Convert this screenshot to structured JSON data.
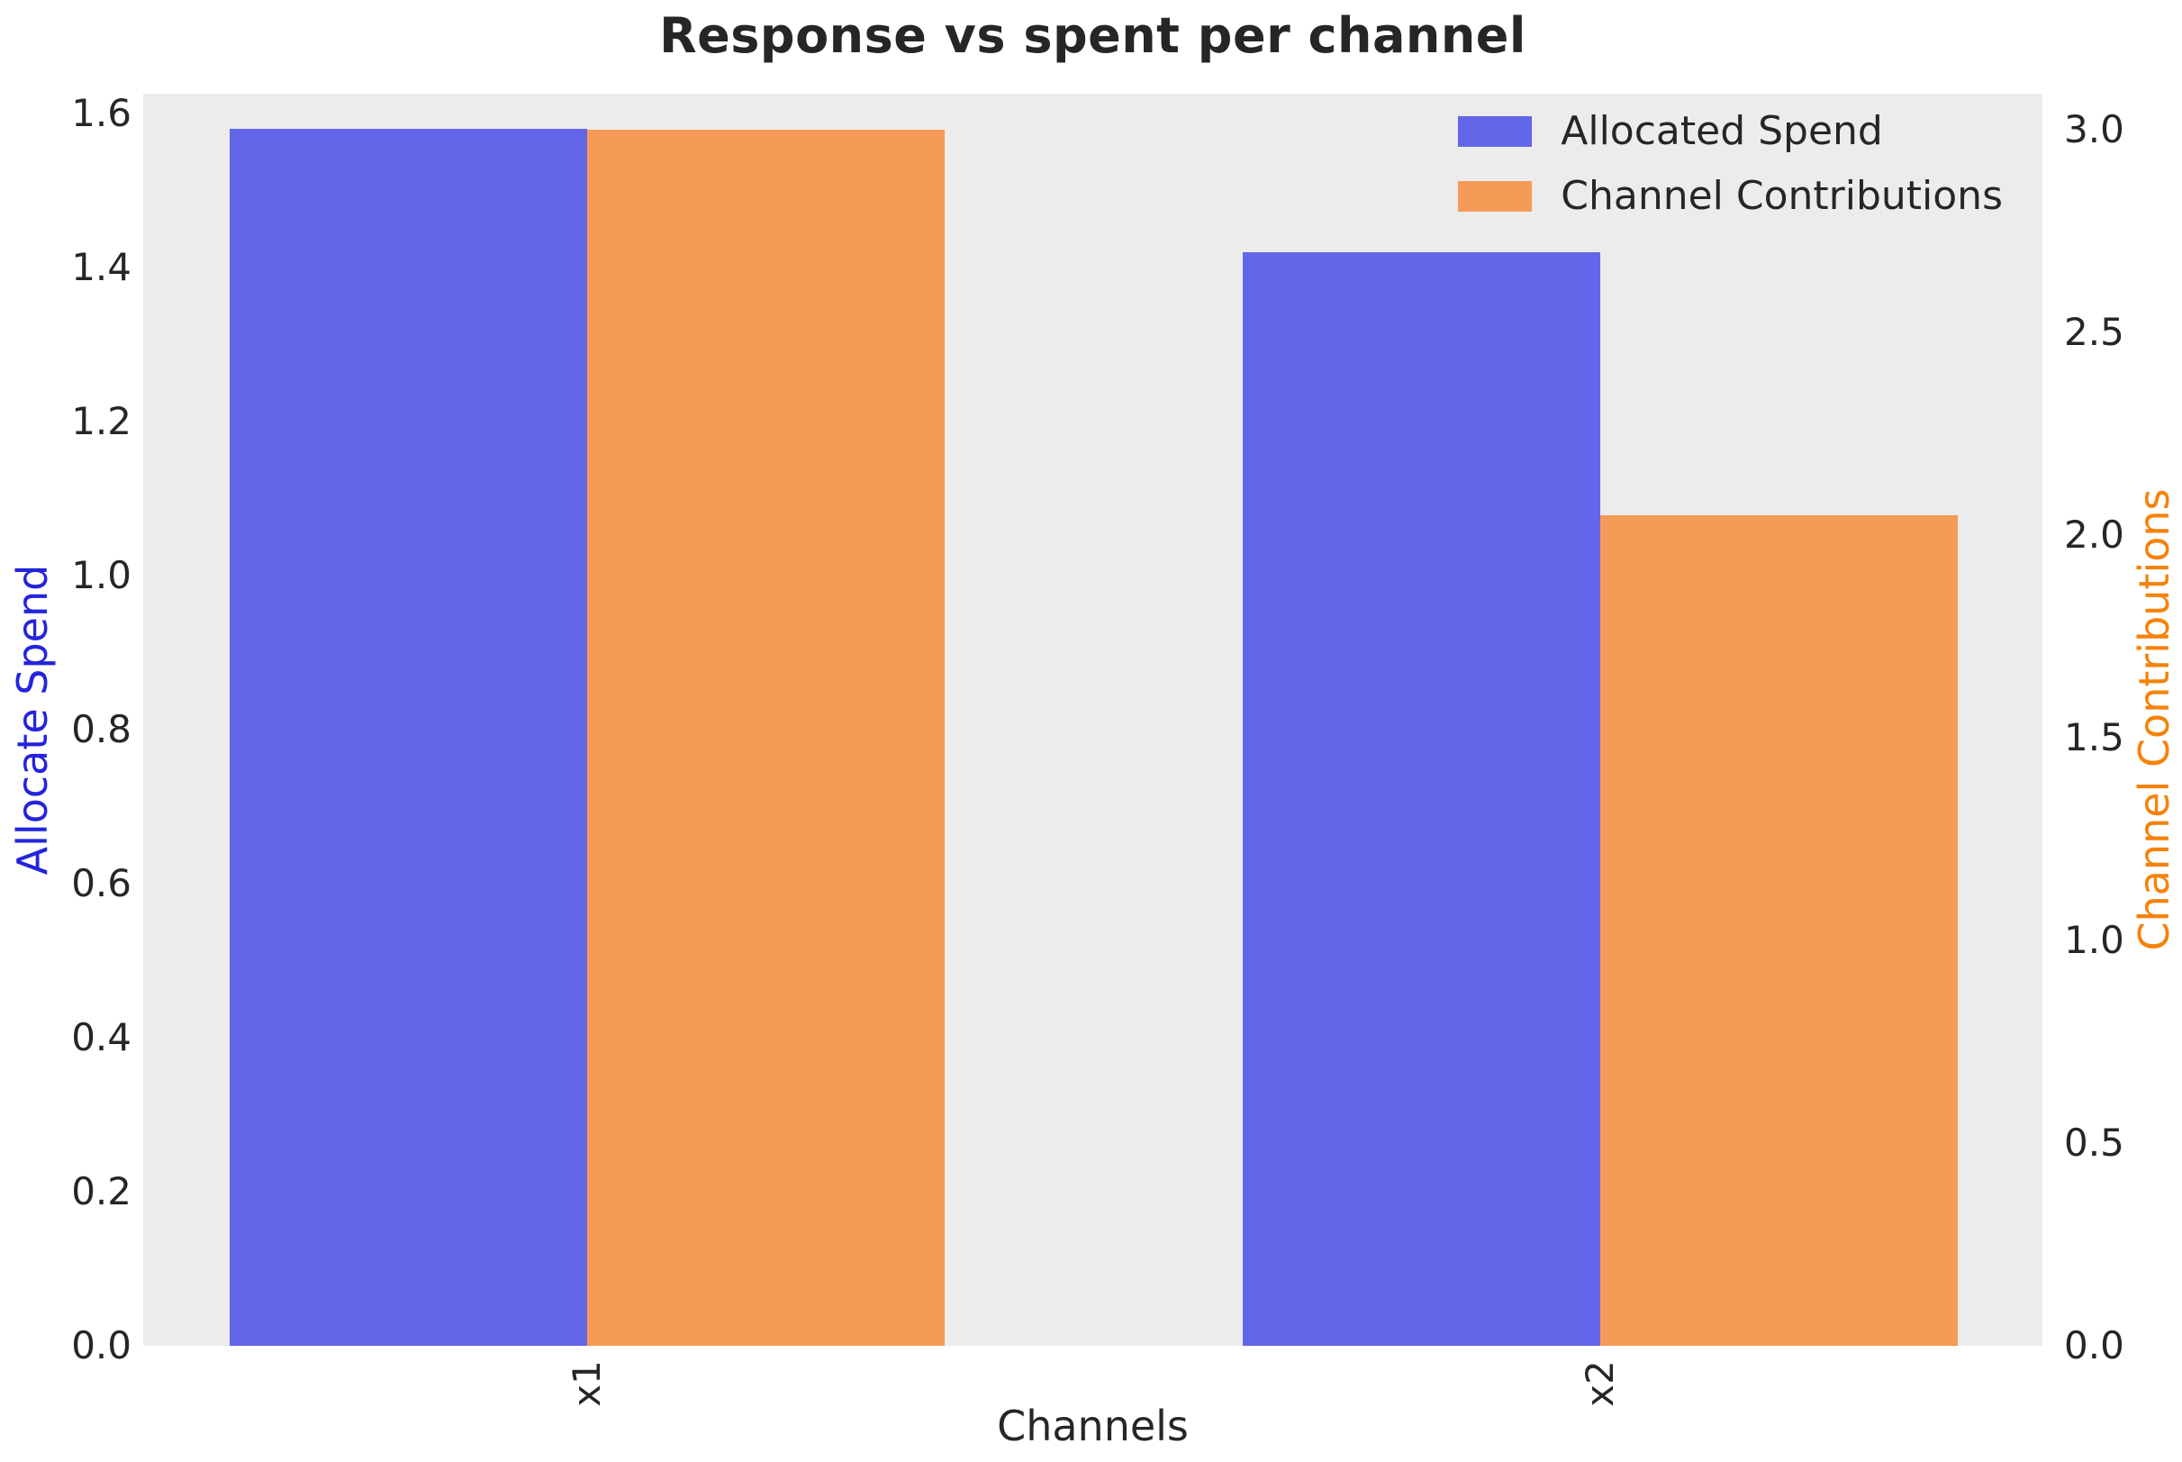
{
  "chart_data": {
    "type": "bar",
    "title": "Response vs spent per channel",
    "xlabel": "Channels",
    "ylabel_left": "Allocate Spend",
    "ylabel_right": "Channel Contributions",
    "categories": [
      "x1",
      "x2"
    ],
    "series": [
      {
        "name": "Allocated Spend",
        "axis": "left",
        "color": "#6366E8",
        "values": [
          1.58,
          1.42
        ]
      },
      {
        "name": "Channel Contributions",
        "axis": "right",
        "color": "#F59B57",
        "values": [
          3.0,
          2.05
        ]
      }
    ],
    "left_axis": {
      "ticks": [
        0.0,
        0.2,
        0.4,
        0.6,
        0.8,
        1.0,
        1.2,
        1.4,
        1.6
      ],
      "max": 1.626,
      "label_color": "#2424DC"
    },
    "right_axis": {
      "ticks": [
        0.0,
        0.5,
        1.0,
        1.5,
        2.0,
        2.5,
        3.0
      ],
      "max": 3.089,
      "label_color": "#F5820B"
    },
    "legend": {
      "position": "upper-right",
      "entries": [
        "Allocated Spend",
        "Channel Contributions"
      ]
    },
    "grid": false,
    "plot_bg": "#ECECEC",
    "tick_color": "#262626"
  }
}
